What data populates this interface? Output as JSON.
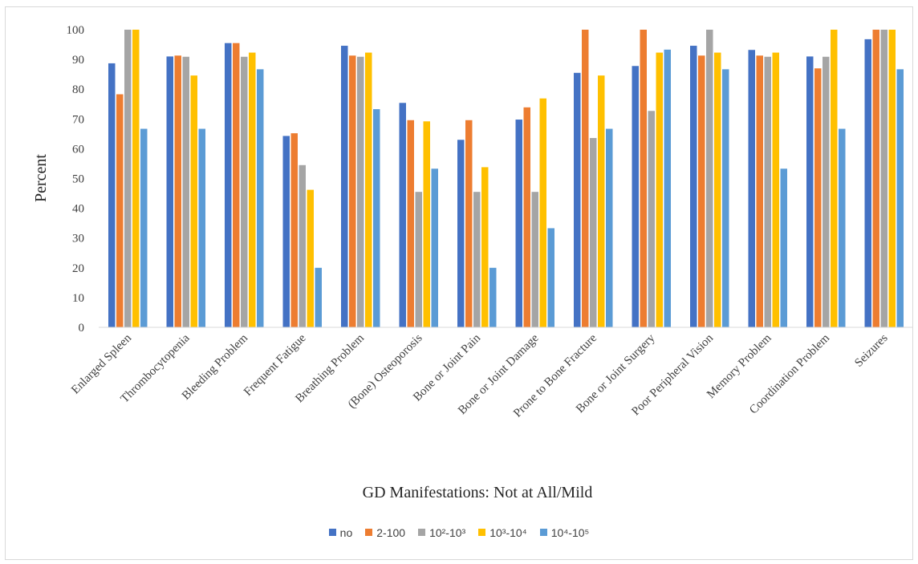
{
  "chart_data": {
    "type": "bar",
    "title": "",
    "xlabel": "GD Manifestations: Not at All/Mild",
    "ylabel": "Percent",
    "ylim": [
      0,
      100
    ],
    "yticks": [
      0,
      10,
      20,
      30,
      40,
      50,
      60,
      70,
      80,
      90,
      100
    ],
    "grid": false,
    "legend_position": "bottom",
    "categories": [
      "Enlarged Spleen",
      "Thrombocytopenia",
      "Bleeding Problem",
      "Frequent Fatigue",
      "Breathing Problem",
      "(Bone) Osteoporosis",
      "Bone or Joint Pain",
      "Bone or Joint Damage",
      "Prone to Bone Fracture",
      "Bone or Joint Surgery",
      "Poor Peripheral Vision",
      "Memory Problem",
      "Coordination Problem",
      "Seizures"
    ],
    "series": [
      {
        "name": "no",
        "color": "#4472C4",
        "values": [
          88.7,
          91.0,
          95.5,
          64.3,
          94.6,
          75.4,
          63.0,
          69.8,
          85.5,
          87.8,
          94.6,
          93.2,
          91.0,
          96.8
        ]
      },
      {
        "name": "2-100",
        "color": "#ED7D31",
        "values": [
          78.3,
          91.3,
          95.5,
          65.2,
          91.3,
          69.6,
          69.6,
          73.9,
          100,
          100,
          91.3,
          91.3,
          87.0,
          100
        ]
      },
      {
        "name": "10²-10³",
        "color": "#A5A5A5",
        "values": [
          100,
          90.9,
          90.9,
          54.5,
          90.9,
          45.5,
          45.5,
          45.5,
          63.6,
          72.7,
          100,
          90.9,
          90.9,
          100
        ]
      },
      {
        "name": "10³-10⁴",
        "color": "#FFC000",
        "values": [
          100,
          84.6,
          92.3,
          46.2,
          92.3,
          69.2,
          53.8,
          76.9,
          84.6,
          92.3,
          92.3,
          92.3,
          100,
          100
        ]
      },
      {
        "name": "10⁴-10⁵",
        "color": "#5B9BD5",
        "values": [
          66.7,
          66.7,
          86.7,
          20.0,
          73.3,
          53.3,
          20.0,
          33.3,
          66.7,
          93.3,
          86.7,
          53.3,
          66.7,
          86.7
        ]
      }
    ]
  }
}
